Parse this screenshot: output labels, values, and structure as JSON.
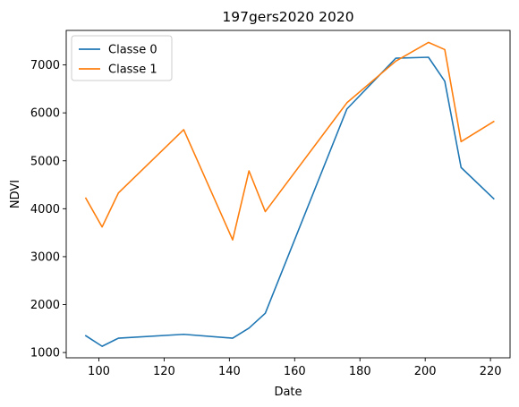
{
  "chart_data": {
    "type": "line",
    "title": "197gers2020 2020",
    "xlabel": "Date",
    "ylabel": "NDVI",
    "xlim": [
      90,
      226
    ],
    "ylim": [
      890,
      7720
    ],
    "xticks": [
      100,
      120,
      140,
      160,
      180,
      200,
      220
    ],
    "yticks": [
      1000,
      2000,
      3000,
      4000,
      5000,
      6000,
      7000
    ],
    "grid": false,
    "legend_position": "top-left",
    "series": [
      {
        "name": "Classe 0",
        "color": "#1f77b4",
        "x": [
          96,
          101,
          106,
          126,
          141,
          146,
          151,
          176,
          191,
          201,
          206,
          211,
          221
        ],
        "y": [
          1350,
          1130,
          1300,
          1380,
          1300,
          1510,
          1820,
          6080,
          7140,
          7160,
          6660,
          4860,
          4210
        ]
      },
      {
        "name": "Classe 1",
        "color": "#ff7f0e",
        "x": [
          96,
          101,
          106,
          126,
          141,
          146,
          151,
          176,
          191,
          201,
          206,
          211,
          221
        ],
        "y": [
          4220,
          3620,
          4330,
          5650,
          3350,
          4790,
          3940,
          6210,
          7080,
          7470,
          7320,
          5400,
          5820
        ]
      }
    ]
  }
}
